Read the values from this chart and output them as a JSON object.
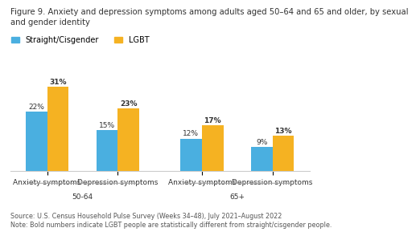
{
  "title": "Figure 9. Anxiety and depression symptoms among adults aged 50–64 and 65 and older, by sexual\nand gender identity",
  "groups": [
    {
      "label": "Anxiety symptoms",
      "age_group": "50-64",
      "straight": 22,
      "lgbt": 31,
      "lgbt_bold": true
    },
    {
      "label": "Depression symptoms",
      "age_group": "50-64",
      "straight": 15,
      "lgbt": 23,
      "lgbt_bold": true
    },
    {
      "label": "Anxiety symptoms",
      "age_group": "65+",
      "straight": 12,
      "lgbt": 17,
      "lgbt_bold": true
    },
    {
      "label": "Depression symptoms",
      "age_group": "65+",
      "straight": 9,
      "lgbt": 13,
      "lgbt_bold": true
    }
  ],
  "age_group_labels": [
    "50-64",
    "65+"
  ],
  "color_straight": "#4AAFE0",
  "color_lgbt": "#F5B222",
  "legend_straight": "Straight/Cisgender",
  "legend_lgbt": "LGBT",
  "source": "Source: U.S. Census Household Pulse Survey (Weeks 34–48), July 2021–August 2022",
  "note": "Note: Bold numbers indicate LGBT people are statistically different from straight/cisgender people.",
  "bar_width": 0.32,
  "group_positions": [
    0,
    1.05,
    2.3,
    3.35
  ],
  "xlim": [
    -0.55,
    3.9
  ],
  "ylim": [
    0,
    38
  ],
  "title_fontsize": 7.2,
  "label_fontsize": 6.5,
  "tick_fontsize": 6.5,
  "legend_fontsize": 7,
  "source_fontsize": 5.8
}
